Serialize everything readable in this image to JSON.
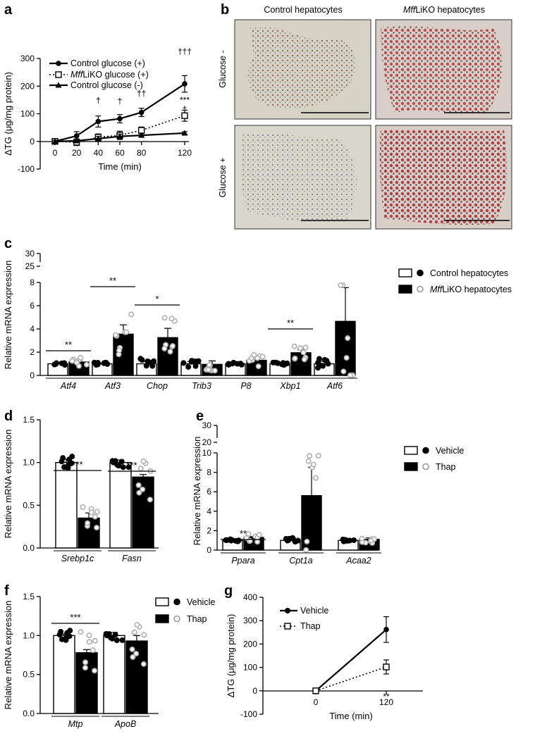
{
  "panel_letters": {
    "a": "a",
    "b": "b",
    "c": "c",
    "d": "d",
    "e": "e",
    "f": "f",
    "g": "g"
  },
  "colors": {
    "control_fill": "#ffffff",
    "ko_fill": "#000000",
    "ko_point": "#b0b0b0",
    "ctl_point": "#000000"
  },
  "chart_data": [
    {
      "panel": "a",
      "type": "line",
      "xlabel": "Time (min)",
      "ylabel": "ΔTG (μg/mg protein)",
      "x": [
        0,
        20,
        40,
        60,
        80,
        120
      ],
      "xticks": [
        "0",
        "20",
        "40",
        "60",
        "80",
        "120"
      ],
      "ylim": [
        -100,
        300
      ],
      "yticks": [
        "-100",
        "0",
        "100",
        "200",
        "300"
      ],
      "series": [
        {
          "name": "Control glucose (+)",
          "name_italic": "",
          "name_rest": "Control glucose (+)",
          "marker": "circle",
          "line": "solid",
          "values": [
            0,
            20,
            72,
            82,
            105,
            208
          ],
          "err": [
            8,
            15,
            20,
            15,
            15,
            30
          ]
        },
        {
          "name": "MffLiKO glucose (+)",
          "name_italic": "Mff",
          "name_rest": "LiKO glucose (+)",
          "marker": "square",
          "line": "dotted",
          "values": [
            0,
            -3,
            15,
            22,
            40,
            93
          ],
          "err": [
            6,
            12,
            12,
            15,
            12,
            20
          ]
        },
        {
          "name": "Control glucose (-)",
          "name_italic": "",
          "name_rest": "Control glucose (-)",
          "marker": "triangle",
          "line": "solid",
          "values": [
            0,
            2,
            10,
            18,
            22,
            30
          ],
          "err": [
            4,
            6,
            8,
            8,
            6,
            5
          ]
        }
      ],
      "annotations": [
        {
          "x": 40,
          "text": "†"
        },
        {
          "x": 60,
          "text": "†"
        },
        {
          "x": 60,
          "text": "*"
        },
        {
          "x": 80,
          "text": "††"
        },
        {
          "x": 80,
          "text": "*"
        },
        {
          "x": 120,
          "text": "†††"
        },
        {
          "x": 120,
          "text": "†"
        },
        {
          "x": 120,
          "text": "***"
        }
      ]
    },
    {
      "panel": "c",
      "type": "bar",
      "ylabel": "Relative mRNA expression",
      "ylim": [
        0,
        8
      ],
      "yticks": [
        "0",
        "2",
        "4",
        "6",
        "8"
      ],
      "broken_axis_ticks": [
        "25",
        "30"
      ],
      "categories": [
        "Atf4",
        "Atf3",
        "Chop",
        "Trib3",
        "P8",
        "Xbp1",
        "Atf6"
      ],
      "series": [
        {
          "name": "Control hepatocytes",
          "values": [
            1.0,
            1.0,
            1.0,
            1.0,
            1.0,
            1.0,
            1.0
          ],
          "err": [
            0.05,
            0.05,
            0.2,
            0.2,
            0.05,
            0.05,
            0.2
          ]
        },
        {
          "name": "MffLiKO hepatocytes",
          "name_italic": "Mff",
          "name_rest": "LiKO hepatocytes",
          "values": [
            1.15,
            3.55,
            3.25,
            0.95,
            1.3,
            1.95,
            4.65
          ],
          "err": [
            0.1,
            0.8,
            0.8,
            0.3,
            0.3,
            0.25,
            2.9
          ]
        }
      ],
      "significance": [
        {
          "category": "Atf4",
          "text": "**"
        },
        {
          "category": "Atf3",
          "text": "**"
        },
        {
          "category": "Chop",
          "text": "*"
        },
        {
          "category": "Xbp1",
          "text": "**"
        }
      ]
    },
    {
      "panel": "d",
      "type": "bar",
      "ylabel": "Relative mRNA expression",
      "ylim": [
        0,
        1.5
      ],
      "yticks": [
        "0.0",
        "0.5",
        "1.0",
        "1.5"
      ],
      "categories": [
        "Srebp1c",
        "Fasn"
      ],
      "series": [
        {
          "name": "Control hepatocytes",
          "values": [
            1.0,
            1.0
          ],
          "err": [
            0.04,
            0.03
          ]
        },
        {
          "name": "MffLiKO hepatocytes",
          "values": [
            0.35,
            0.83
          ],
          "err": [
            0.06,
            0.03
          ]
        }
      ],
      "significance": [
        {
          "category": "Srebp1c",
          "text": "***"
        },
        {
          "category": "Fasn",
          "text": "***"
        }
      ]
    },
    {
      "panel": "e",
      "type": "bar",
      "ylabel": "Relative mRNA expression",
      "ylim": [
        0,
        10
      ],
      "yticks": [
        "0",
        "2",
        "4",
        "6",
        "8",
        "10"
      ],
      "broken_axis_ticks": [
        "20",
        "30"
      ],
      "categories": [
        "Ppara",
        "Cpt1a",
        "Acaa2"
      ],
      "series": [
        {
          "name": "Vehicle",
          "values": [
            1.0,
            1.0,
            1.0
          ],
          "err": [
            0.05,
            0.2,
            0.05
          ]
        },
        {
          "name": "Thap",
          "values": [
            1.3,
            5.6,
            1.1
          ],
          "err": [
            0.1,
            2.9,
            0.15
          ]
        }
      ],
      "significance": [
        {
          "category": "Ppara",
          "text": "**"
        }
      ]
    },
    {
      "panel": "f",
      "type": "bar",
      "ylabel": "Relative mRNA expression",
      "ylim": [
        0,
        1.5
      ],
      "yticks": [
        "0.0",
        "0.5",
        "1.0",
        "1.5"
      ],
      "categories": [
        "Mtp",
        "ApoB"
      ],
      "series": [
        {
          "name": "Vehicle",
          "values": [
            1.0,
            1.0
          ],
          "err": [
            0.02,
            0.04
          ]
        },
        {
          "name": "Thap",
          "values": [
            0.78,
            0.93
          ],
          "err": [
            0.04,
            0.07
          ]
        }
      ],
      "significance": [
        {
          "category": "Mtp",
          "text": "***"
        }
      ]
    },
    {
      "panel": "g",
      "type": "line",
      "xlabel": "Time (min)",
      "ylabel": "ΔTG (μg/mg protein)",
      "x": [
        0,
        120
      ],
      "xticks": [
        "0",
        "120"
      ],
      "ylim": [
        -100,
        400
      ],
      "yticks": [
        "-100",
        "0",
        "100",
        "200",
        "300",
        "400"
      ],
      "series": [
        {
          "name": "Vehicle",
          "marker": "circle",
          "line": "solid",
          "values": [
            0,
            262
          ],
          "err": [
            10,
            55
          ]
        },
        {
          "name": "Thap",
          "marker": "square",
          "line": "dotted",
          "values": [
            0,
            102
          ],
          "err": [
            8,
            30
          ]
        }
      ],
      "annotations": [
        {
          "x": 120,
          "text": "**"
        }
      ]
    }
  ],
  "micrographs": {
    "col_titles": [
      "Control hepatocytes",
      "MffLiKO hepatocytes"
    ],
    "col2_italic": "Mff",
    "col2_rest": "LiKO hepatocytes",
    "row_titles": [
      "Glucose -",
      "Glucose +"
    ]
  }
}
